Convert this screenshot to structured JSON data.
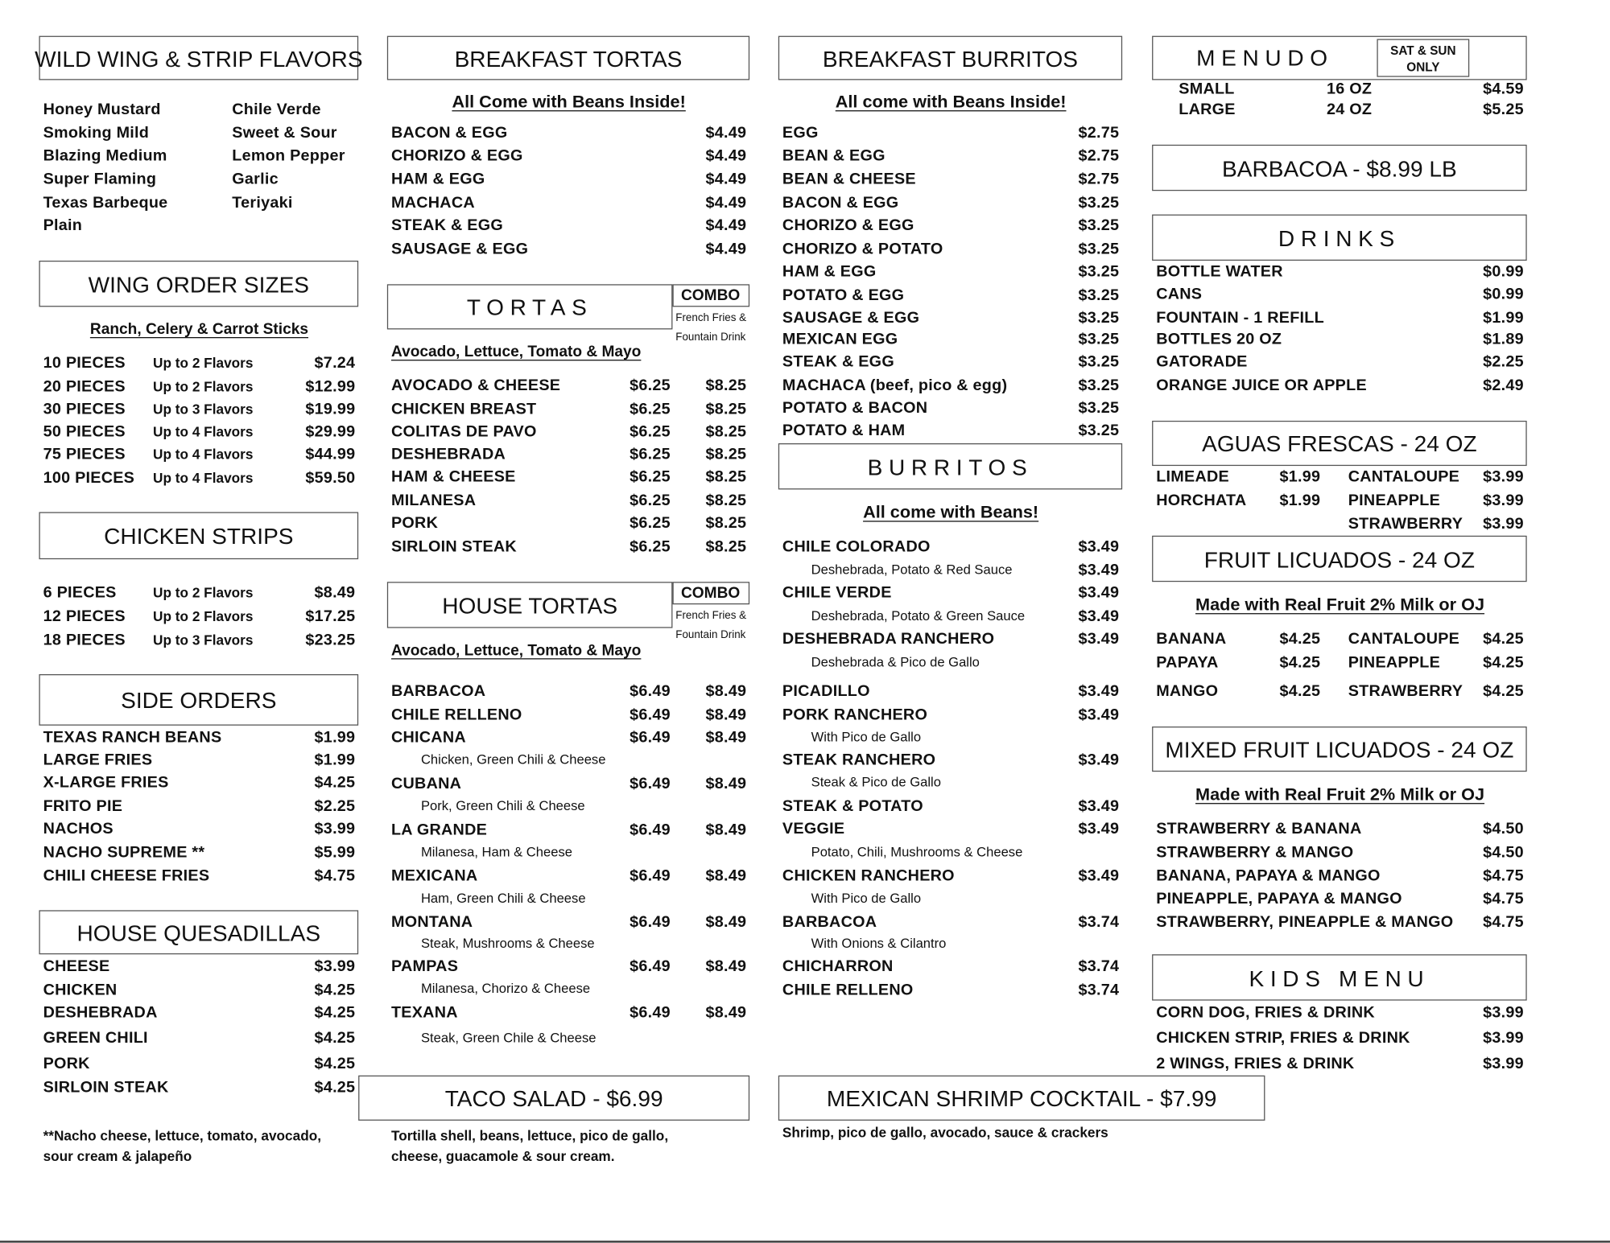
{
  "wing_flavors": {
    "title": "WILD WING & STRIP FLAVORS",
    "left": [
      "Honey Mustard",
      "Smoking Mild",
      "Blazing Medium",
      "Super Flaming",
      "Texas Barbeque",
      "Plain"
    ],
    "right": [
      "Chile Verde",
      "Sweet & Sour",
      "Lemon Pepper",
      "Garlic",
      "Teriyaki"
    ]
  },
  "wing_sizes": {
    "title": "WING ORDER SIZES",
    "subtitle": "Ranch, Celery & Carrot Sticks",
    "items": [
      {
        "pieces": "10 PIECES",
        "flavors": "Up to 2 Flavors",
        "price": "$7.24"
      },
      {
        "pieces": "20 PIECES",
        "flavors": "Up to 2 Flavors",
        "price": "$12.99"
      },
      {
        "pieces": "30 PIECES",
        "flavors": "Up to 3 Flavors",
        "price": "$19.99"
      },
      {
        "pieces": "50 PIECES",
        "flavors": "Up to 4 Flavors",
        "price": "$29.99"
      },
      {
        "pieces": "75 PIECES",
        "flavors": "Up to 4 Flavors",
        "price": "$44.99"
      },
      {
        "pieces": "100 PIECES",
        "flavors": "Up to 4 Flavors",
        "price": "$59.50"
      }
    ]
  },
  "chicken_strips": {
    "title": "CHICKEN STRIPS",
    "items": [
      {
        "pieces": "6 PIECES",
        "flavors": "Up to 2 Flavors",
        "price": "$8.49"
      },
      {
        "pieces": "12 PIECES",
        "flavors": "Up to 2 Flavors",
        "price": "$17.25"
      },
      {
        "pieces": "18 PIECES",
        "flavors": "Up to 3 Flavors",
        "price": "$23.25"
      }
    ]
  },
  "side_orders": {
    "title": "SIDE ORDERS",
    "items": [
      {
        "name": "TEXAS RANCH BEANS",
        "price": "$1.99"
      },
      {
        "name": "LARGE FRIES",
        "price": "$1.99"
      },
      {
        "name": "X-LARGE FRIES",
        "price": "$4.25"
      },
      {
        "name": "FRITO PIE",
        "price": "$2.25"
      },
      {
        "name": "NACHOS",
        "price": "$3.99"
      },
      {
        "name": "NACHO SUPREME **",
        "price": "$5.99"
      },
      {
        "name": "CHILI CHEESE FRIES",
        "price": "$4.75"
      }
    ]
  },
  "house_quesadillas": {
    "title": "HOUSE QUESADILLAS",
    "items": [
      {
        "name": "CHEESE",
        "price": "$3.99"
      },
      {
        "name": "CHICKEN",
        "price": "$4.25"
      },
      {
        "name": "DESHEBRADA",
        "price": "$4.25"
      },
      {
        "name": "GREEN CHILI",
        "price": "$4.25"
      },
      {
        "name": "PORK",
        "price": "$4.25"
      },
      {
        "name": "SIRLOIN STEAK",
        "price": "$4.25"
      }
    ],
    "footnote": [
      "**Nacho cheese, lettuce, tomato, avocado,",
      "sour cream & jalapeño"
    ]
  },
  "breakfast_tortas": {
    "title": "BREAKFAST TORTAS",
    "subtitle": "All Come with Beans Inside!",
    "items": [
      {
        "name": "BACON & EGG",
        "price": "$4.49"
      },
      {
        "name": "CHORIZO & EGG",
        "price": "$4.49"
      },
      {
        "name": "HAM & EGG",
        "price": "$4.49"
      },
      {
        "name": "MACHACA",
        "price": "$4.49"
      },
      {
        "name": "STEAK & EGG",
        "price": "$4.49"
      },
      {
        "name": "SAUSAGE & EGG",
        "price": "$4.49"
      }
    ]
  },
  "tortas": {
    "title": "TORTAS",
    "combo_label": "COMBO",
    "combo_note": [
      "French Fries &",
      "Fountain Drink"
    ],
    "subtitle": "Avocado, Lettuce, Tomato & Mayo",
    "items": [
      {
        "name": "AVOCADO & CHEESE",
        "price": "$6.25",
        "combo_price": "$8.25"
      },
      {
        "name": "CHICKEN BREAST",
        "price": "$6.25",
        "combo_price": "$8.25"
      },
      {
        "name": "COLITAS DE PAVO",
        "price": "$6.25",
        "combo_price": "$8.25"
      },
      {
        "name": "DESHEBRADA",
        "price": "$6.25",
        "combo_price": "$8.25"
      },
      {
        "name": "HAM & CHEESE",
        "price": "$6.25",
        "combo_price": "$8.25"
      },
      {
        "name": "MILANESA",
        "price": "$6.25",
        "combo_price": "$8.25"
      },
      {
        "name": "PORK",
        "price": "$6.25",
        "combo_price": "$8.25"
      },
      {
        "name": "SIRLOIN STEAK",
        "price": "$6.25",
        "combo_price": "$8.25"
      }
    ]
  },
  "house_tortas": {
    "title": "HOUSE  TORTAS",
    "combo_label": "COMBO",
    "combo_note": [
      "French Fries &",
      "Fountain Drink"
    ],
    "subtitle": "Avocado, Lettuce, Tomato & Mayo",
    "items": [
      {
        "name": "BARBACOA",
        "price": "$6.49",
        "combo_price": "$8.49"
      },
      {
        "name": "CHILE RELLENO",
        "price": "$6.49",
        "combo_price": "$8.49"
      },
      {
        "name": "CHICANA",
        "price": "$6.49",
        "combo_price": "$8.49",
        "desc": "Chicken, Green Chili & Cheese"
      },
      {
        "name": "CUBANA",
        "price": "$6.49",
        "combo_price": "$8.49",
        "desc": "Pork, Green Chili & Cheese"
      },
      {
        "name": "LA GRANDE",
        "price": "$6.49",
        "combo_price": "$8.49",
        "desc": "Milanesa, Ham & Cheese"
      },
      {
        "name": "MEXICANA",
        "price": "$6.49",
        "combo_price": "$8.49",
        "desc": "Ham, Green Chili & Cheese"
      },
      {
        "name": "MONTANA",
        "price": "$6.49",
        "combo_price": "$8.49",
        "desc": "Steak, Mushrooms & Cheese"
      },
      {
        "name": "PAMPAS",
        "price": "$6.49",
        "combo_price": "$8.49",
        "desc": "Milanesa, Chorizo & Cheese"
      },
      {
        "name": "TEXANA",
        "price": "$6.49",
        "combo_price": "$8.49",
        "desc": "Steak, Green Chile & Cheese"
      }
    ]
  },
  "taco_salad": {
    "title": "TACO  SALAD  -  $6.99",
    "description": [
      "Tortilla shell, beans, lettuce, pico de gallo,",
      "cheese, guacamole & sour cream."
    ]
  },
  "breakfast_burritos": {
    "title": "BREAKFAST BURRITOS",
    "subtitle": "All come with Beans Inside!",
    "items": [
      {
        "name": "EGG",
        "price": "$2.75"
      },
      {
        "name": "BEAN & EGG",
        "price": "$2.75"
      },
      {
        "name": "BEAN & CHEESE",
        "price": "$2.75"
      },
      {
        "name": "BACON & EGG",
        "price": "$3.25"
      },
      {
        "name": "CHORIZO & EGG",
        "price": "$3.25"
      },
      {
        "name": "CHORIZO & POTATO",
        "price": "$3.25"
      },
      {
        "name": "HAM & EGG",
        "price": "$3.25"
      },
      {
        "name": "POTATO & EGG",
        "price": "$3.25"
      },
      {
        "name": "SAUSAGE & EGG",
        "price": "$3.25"
      },
      {
        "name": "MEXICAN EGG",
        "price": "$3.25"
      },
      {
        "name": "STEAK & EGG",
        "price": "$3.25"
      },
      {
        "name": "MACHACA (beef, pico & egg)",
        "price": "$3.25"
      },
      {
        "name": "POTATO & BACON",
        "price": "$3.25"
      },
      {
        "name": "POTATO & HAM",
        "price": "$3.25"
      }
    ]
  },
  "burritos": {
    "title": "BURRITOS",
    "subtitle": "All come with Beans!",
    "items": [
      {
        "name": "CHILE COLORADO",
        "price": "$3.49",
        "desc": "Deshebrada, Potato & Red Sauce",
        "desc_price": "$3.49"
      },
      {
        "name": "CHILE VERDE",
        "price": "$3.49",
        "desc": "Deshebrada, Potato & Green Sauce",
        "desc_price": "$3.49"
      },
      {
        "name": "DESHEBRADA RANCHERO",
        "price": "$3.49",
        "desc": "Deshebrada & Pico de Gallo"
      },
      {
        "name": "PICADILLO",
        "price": "$3.49"
      },
      {
        "name": "PORK RANCHERO",
        "price": "$3.49",
        "desc": "With Pico de Gallo"
      },
      {
        "name": "STEAK RANCHERO",
        "price": "$3.49",
        "desc": "Steak & Pico de Gallo"
      },
      {
        "name": "STEAK & POTATO",
        "price": "$3.49"
      },
      {
        "name": "VEGGIE",
        "price": "$3.49",
        "desc": "Potato, Chili, Mushrooms & Cheese"
      },
      {
        "name": "CHICKEN RANCHERO",
        "price": "$3.49",
        "desc": "With Pico de Gallo"
      },
      {
        "name": "BARBACOA",
        "price": "$3.74",
        "desc": "With Onions & Cilantro"
      },
      {
        "name": "CHICHARRON",
        "price": "$3.74"
      },
      {
        "name": "CHILE RELLENO",
        "price": "$3.74"
      }
    ]
  },
  "shrimp_cocktail": {
    "title": "MEXICAN SHRIMP COCKTAIL  -  $7.99",
    "description": "Shrimp, pico de gallo, avocado, sauce & crackers"
  },
  "menudo": {
    "title": "MENUDO",
    "badge": [
      "SAT & SUN",
      "ONLY"
    ],
    "items": [
      {
        "size": "SMALL",
        "oz": "16 OZ",
        "price": "$4.59"
      },
      {
        "size": "LARGE",
        "oz": "24 OZ",
        "price": "$5.25"
      }
    ]
  },
  "barbacoa": {
    "title": "BARBACOA  -   $8.99 LB"
  },
  "drinks": {
    "title": "DRINKS",
    "items": [
      {
        "name": "BOTTLE WATER",
        "price": "$0.99"
      },
      {
        "name": "CANS",
        "price": "$0.99"
      },
      {
        "name": "FOUNTAIN - 1 REFILL",
        "price": "$1.99"
      },
      {
        "name": "BOTTLES 20 OZ",
        "price": "$1.89"
      },
      {
        "name": "GATORADE",
        "price": "$2.25"
      },
      {
        "name": "ORANGE JUICE OR APPLE",
        "price": "$2.49"
      }
    ]
  },
  "aguas_frescas": {
    "title": "AGUAS FRESCAS  -  24 OZ",
    "items": [
      {
        "name": "LIMEADE",
        "price": "$1.99",
        "name2": "CANTALOUPE",
        "price2": "$3.99"
      },
      {
        "name": "HORCHATA",
        "price": "$1.99",
        "name2": "PINEAPPLE",
        "price2": "$3.99"
      },
      {
        "name2": "STRAWBERRY",
        "price2": "$3.99"
      }
    ]
  },
  "fruit_licuados": {
    "title": "FRUIT LICUADOS  -  24 OZ",
    "subtitle": "Made with Real Fruit 2% Milk or OJ",
    "items": [
      {
        "name": "BANANA",
        "price": "$4.25",
        "name2": "CANTALOUPE",
        "price2": "$4.25"
      },
      {
        "name": "PAPAYA",
        "price": "$4.25",
        "name2": "PINEAPPLE",
        "price2": "$4.25"
      },
      {
        "name": "MANGO",
        "price": "$4.25",
        "name2": "STRAWBERRY",
        "price2": "$4.25"
      }
    ]
  },
  "mixed_fruit_licuados": {
    "title": "MIXED FRUIT LICUADOS  -  24 OZ",
    "subtitle": "Made with Real Fruit 2% Milk or OJ",
    "items": [
      {
        "name": "STRAWBERRY & BANANA",
        "price": "$4.50"
      },
      {
        "name": "STRAWBERRY & MANGO",
        "price": "$4.50"
      },
      {
        "name": "BANANA, PAPAYA & MANGO",
        "price": "$4.75"
      },
      {
        "name": "PINEAPPLE, PAPAYA & MANGO",
        "price": "$4.75"
      },
      {
        "name": "STRAWBERRY, PINEAPPLE & MANGO",
        "price": "$4.75"
      }
    ]
  },
  "kids_menu": {
    "title": "KIDS MENU",
    "items": [
      {
        "name": "CORN DOG, FRIES & DRINK",
        "price": "$3.99"
      },
      {
        "name": "CHICKEN STRIP, FRIES & DRINK",
        "price": "$3.99"
      },
      {
        "name": "2 WINGS, FRIES & DRINK",
        "price": "$3.99"
      }
    ]
  }
}
